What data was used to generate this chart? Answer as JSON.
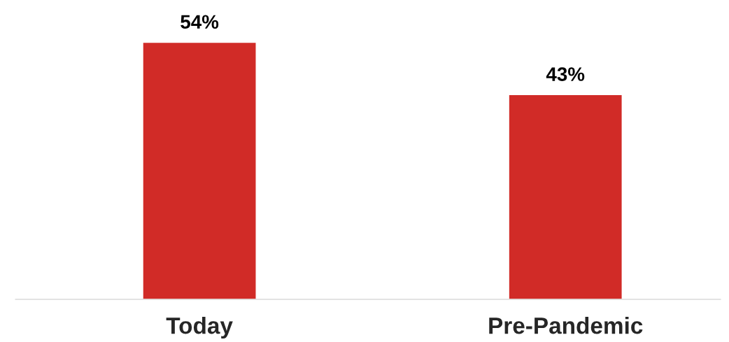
{
  "chart_data": {
    "type": "bar",
    "categories": [
      "Today",
      "Pre-Pandemic"
    ],
    "values": [
      54,
      43
    ],
    "color": "#d12b27",
    "value_labels": [
      "54%",
      "43%"
    ],
    "tick_labels": "x",
    "grid": false,
    "legend": false
  }
}
